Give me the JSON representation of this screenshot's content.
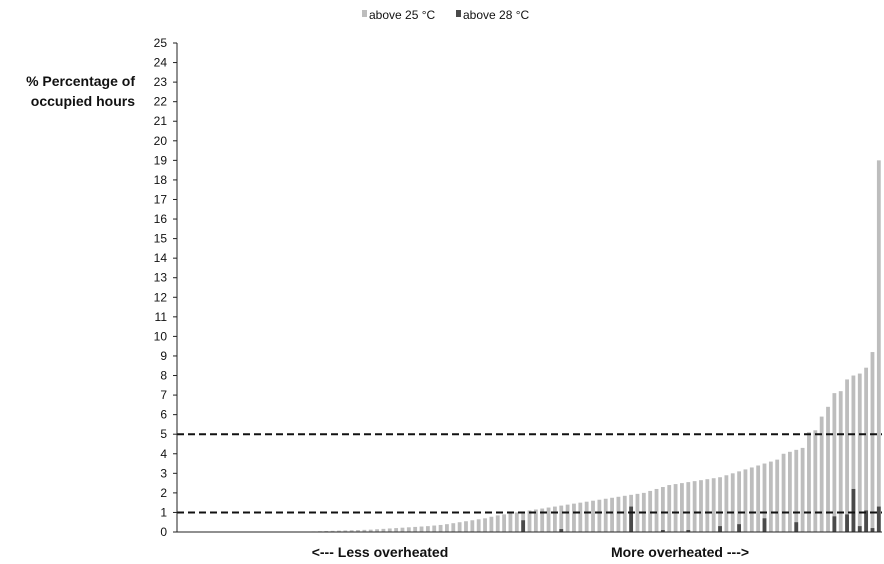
{
  "chart_data": {
    "type": "bar",
    "legend": {
      "placement": "top-center",
      "entries": [
        {
          "label": "above 25 °C",
          "color": "#bdbdbd"
        },
        {
          "label": "above 28 °C",
          "color": "#4a4a4a"
        }
      ]
    },
    "ylabel_lines": [
      "% Percentage of",
      "occupied hours"
    ],
    "x_annotations": {
      "left": "<--- Less overheated",
      "right": "More overheated --->"
    },
    "ylim": [
      0,
      25
    ],
    "yticks": [
      "0",
      "1",
      "2",
      "3",
      "4",
      "5",
      "6",
      "7",
      "8",
      "9",
      "10",
      "11",
      "12",
      "13",
      "14",
      "15",
      "16",
      "17",
      "18",
      "19",
      "20",
      "21",
      "22",
      "23",
      "24",
      "25"
    ],
    "reference_lines": [
      1,
      5
    ],
    "grid": false,
    "series": [
      {
        "name": "above 25 °C",
        "color": "#bdbdbd",
        "values": [
          0,
          0,
          0,
          0,
          0,
          0,
          0,
          0,
          0,
          0,
          0,
          0,
          0,
          0,
          0,
          0,
          0,
          0,
          0,
          0,
          0.02,
          0.03,
          0.04,
          0.05,
          0.06,
          0.07,
          0.08,
          0.09,
          0.1,
          0.11,
          0.12,
          0.14,
          0.16,
          0.18,
          0.2,
          0.22,
          0.24,
          0.26,
          0.28,
          0.3,
          0.33,
          0.36,
          0.4,
          0.45,
          0.5,
          0.55,
          0.6,
          0.65,
          0.7,
          0.78,
          0.85,
          0.9,
          0.95,
          1.0,
          1.05,
          1.1,
          1.15,
          1.2,
          1.25,
          1.3,
          1.35,
          1.4,
          1.45,
          1.5,
          1.55,
          1.6,
          1.65,
          1.7,
          1.75,
          1.8,
          1.85,
          1.9,
          1.95,
          2.0,
          2.1,
          2.2,
          2.3,
          2.4,
          2.45,
          2.5,
          2.55,
          2.6,
          2.65,
          2.7,
          2.75,
          2.8,
          2.9,
          3.0,
          3.1,
          3.2,
          3.3,
          3.4,
          3.5,
          3.6,
          3.7,
          4.0,
          4.1,
          4.2,
          4.3,
          5.1,
          5.2,
          5.9,
          6.4,
          7.1,
          7.2,
          7.8,
          8.0,
          8.1,
          8.4,
          9.2,
          19.0
        ]
      },
      {
        "name": "above 28 °C",
        "color": "#4a4a4a",
        "values": [
          0,
          0,
          0,
          0,
          0,
          0,
          0,
          0,
          0,
          0,
          0,
          0,
          0,
          0,
          0,
          0,
          0,
          0,
          0,
          0,
          0,
          0,
          0,
          0,
          0,
          0,
          0,
          0,
          0,
          0,
          0,
          0,
          0,
          0,
          0,
          0,
          0,
          0,
          0,
          0,
          0,
          0,
          0,
          0,
          0,
          0,
          0,
          0,
          0,
          0,
          0,
          0,
          0,
          0,
          0.6,
          0,
          0,
          0,
          0,
          0,
          0.15,
          0,
          0,
          0,
          0,
          0,
          0,
          0,
          0,
          0,
          0,
          1.3,
          0,
          0,
          0,
          0,
          0.1,
          0,
          0,
          0,
          0.1,
          0,
          0,
          0,
          0,
          0.3,
          0,
          0,
          0.4,
          0,
          0,
          0,
          0.7,
          0,
          0,
          0,
          0,
          0.5,
          0,
          0,
          0,
          0,
          0,
          0.8,
          0,
          0.9,
          2.2,
          0.3,
          1.1,
          0.2,
          1.3
        ]
      }
    ]
  }
}
